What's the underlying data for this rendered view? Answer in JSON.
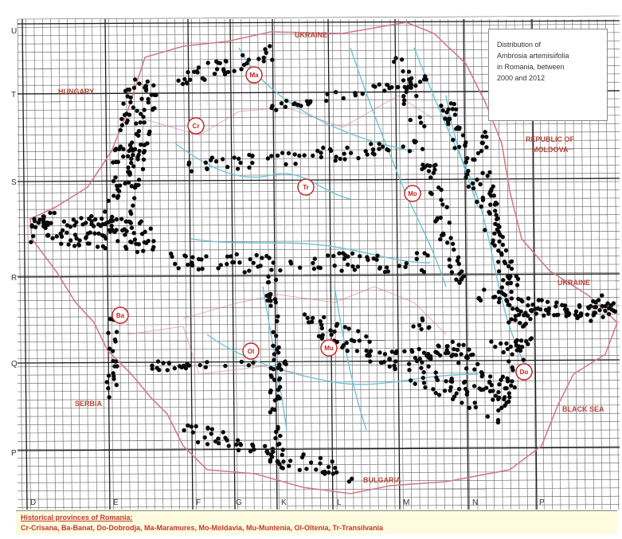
{
  "legend": {
    "line1": "Distribution of",
    "line2": "Ambrosia artemisiifolia",
    "line3": "in Romania, between",
    "line4": "2000 and 2012"
  },
  "countries": {
    "ukraine_north": "UKRAINE",
    "hungary": "HUNGARY",
    "moldova_line1": "REPUBLIC OF",
    "moldova_line2": "MOLDOVA",
    "ukraine_south": "UKRAINE",
    "serbia": "SERBIA",
    "bulgaria": "BULGARIA",
    "black_sea": "BLACK SEA"
  },
  "province_markers": [
    "Ma",
    "Cr",
    "Tr",
    "Mo",
    "Ba",
    "Ol",
    "Mu",
    "Do"
  ],
  "row_letters": [
    "U",
    "T",
    "S",
    "R",
    "Q",
    "P"
  ],
  "col_letters": [
    "D",
    "E",
    "F",
    "G",
    "K",
    "L",
    "M",
    "N",
    "P"
  ],
  "footer": {
    "title": "Historical provinces of Romania:",
    "codes": "Cr-Crisana, Ba-Banat, Do-Dobrodja, Ma-Maramures, Mo-Moldavia, Mu-Muntenia, Ol-Oltenia, Tr-Transilvania"
  },
  "colors": {
    "grid": "#3a3a3a",
    "border": "#d27a8a",
    "river": "#6cc3d6",
    "dot": "#0b0b0b",
    "province_circle": "#c02020"
  }
}
